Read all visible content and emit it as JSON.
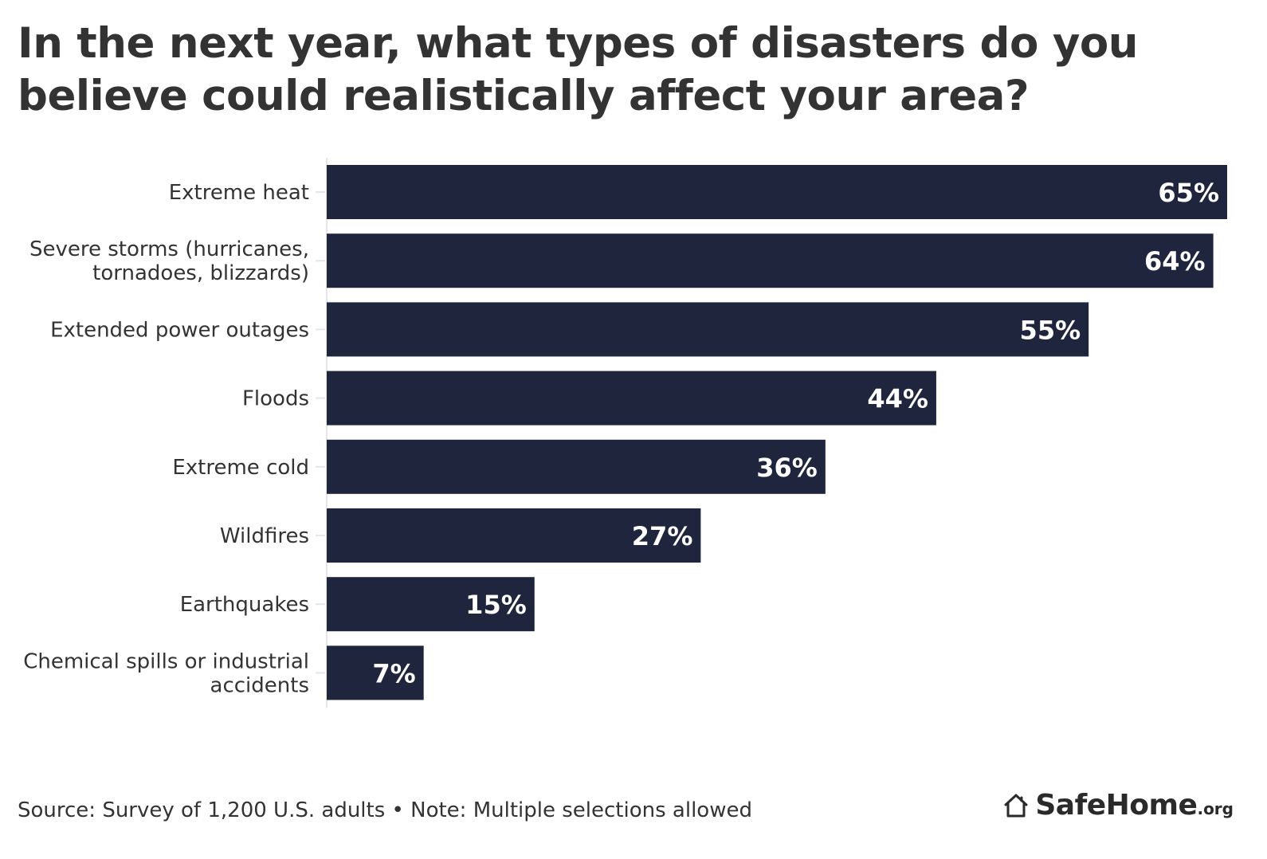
{
  "title": "In the next year, what types of disasters do you believe could realistically affect your area?",
  "footer": {
    "source": "Source: Survey of 1,200 U.S. adults • Note: Multiple selections allowed"
  },
  "brand": {
    "name": "SafeHome",
    "tld": ".org",
    "icon": "house-icon"
  },
  "colors": {
    "bar": "#1f253d",
    "bar_label": "#ffffff",
    "text": "#333333",
    "axis": "#e6e6e6"
  },
  "chart_data": {
    "type": "bar",
    "orientation": "horizontal",
    "categories": [
      [
        "Extreme heat"
      ],
      [
        "Severe storms (hurricanes,",
        "tornadoes, blizzards)"
      ],
      [
        "Extended power outages"
      ],
      [
        "Floods"
      ],
      [
        "Extreme cold"
      ],
      [
        "Wildfires"
      ],
      [
        "Earthquakes"
      ],
      [
        "Chemical spills or industrial",
        "accidents"
      ]
    ],
    "values": [
      65,
      64,
      55,
      44,
      36,
      27,
      15,
      7
    ],
    "data_labels": [
      "65%",
      "64%",
      "55%",
      "44%",
      "36%",
      "27%",
      "15%",
      "7%"
    ],
    "xlim": [
      0,
      65
    ],
    "grid": false,
    "legend": "none"
  }
}
